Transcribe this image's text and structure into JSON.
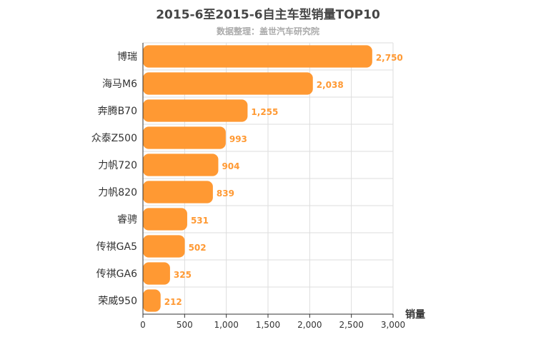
{
  "chart_data": {
    "type": "bar",
    "orientation": "horizontal",
    "title": "2015-6至2015-6自主车型销量TOP10",
    "subtitle": "数据整理：盖世汽车研究院",
    "xlabel": "销量",
    "ylabel": "",
    "categories": [
      "博瑞",
      "海马M6",
      "奔腾B70",
      "众泰Z500",
      "力帆720",
      "力帆820",
      "睿骋",
      "传祺GA5",
      "传祺GA6",
      "荣威950"
    ],
    "values": [
      2750,
      2038,
      1255,
      993,
      904,
      839,
      531,
      502,
      325,
      212
    ],
    "value_labels": [
      "2,750",
      "2,038",
      "1,255",
      "993",
      "904",
      "839",
      "531",
      "502",
      "325",
      "212"
    ],
    "xlim": [
      0,
      3000
    ],
    "xticks": [
      0,
      500,
      1000,
      1500,
      2000,
      2500,
      3000
    ],
    "xtick_labels": [
      "0",
      "500",
      "1,000",
      "1,500",
      "2,000",
      "2,500",
      "3,000"
    ],
    "grid": true,
    "bar_color": "#ff9933",
    "label_color": "#ff9933"
  }
}
